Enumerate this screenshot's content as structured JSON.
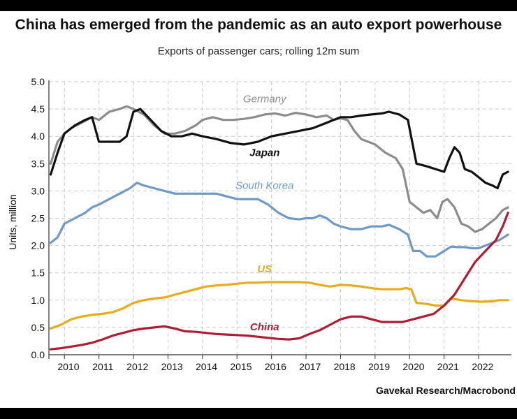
{
  "header": {
    "title": "China has emerged from the pandemic as an auto export powerhouse",
    "subtitle": "Exports of passenger cars; rolling 12m sum",
    "source": "Gavekal Research/Macrobond"
  },
  "chart_data": {
    "type": "line",
    "title": "China has emerged from the pandemic as an auto export powerhouse",
    "subtitle": "Exports of passenger cars; rolling 12m sum",
    "xlabel": "",
    "ylabel": "Units, million",
    "xlim": [
      2009.55,
      2022.95
    ],
    "ylim": [
      0,
      5
    ],
    "yticks": [
      "0.0",
      "0.5",
      "1.0",
      "1.5",
      "2.0",
      "2.5",
      "3.0",
      "3.5",
      "4.0",
      "4.5",
      "5.0"
    ],
    "xticks": [
      "2010",
      "2011",
      "2012",
      "2013",
      "2014",
      "2015",
      "2016",
      "2017",
      "2018",
      "2019",
      "2020",
      "2021",
      "2022"
    ],
    "grid": true,
    "series": [
      {
        "name": "Germany",
        "color": "#8c8c8c",
        "x": [
          2009.6,
          2009.8,
          2010.0,
          2010.2,
          2010.5,
          2010.8,
          2011.0,
          2011.3,
          2011.6,
          2011.8,
          2012.0,
          2012.3,
          2012.6,
          2012.9,
          2013.2,
          2013.5,
          2013.8,
          2014.0,
          2014.3,
          2014.6,
          2014.9,
          2015.2,
          2015.5,
          2015.8,
          2016.1,
          2016.4,
          2016.7,
          2017.0,
          2017.3,
          2017.6,
          2017.8,
          2018.0,
          2018.2,
          2018.4,
          2018.6,
          2018.8,
          2019.0,
          2019.3,
          2019.6,
          2019.8,
          2020.0,
          2020.2,
          2020.4,
          2020.6,
          2020.8,
          2020.95,
          2021.1,
          2021.3,
          2021.5,
          2021.7,
          2021.9,
          2022.1,
          2022.3,
          2022.5,
          2022.7,
          2022.85
        ],
        "values": [
          3.5,
          3.9,
          4.05,
          4.15,
          4.25,
          4.35,
          4.3,
          4.45,
          4.5,
          4.55,
          4.5,
          4.4,
          4.2,
          4.05,
          4.05,
          4.1,
          4.2,
          4.3,
          4.35,
          4.3,
          4.3,
          4.32,
          4.35,
          4.4,
          4.42,
          4.38,
          4.43,
          4.4,
          4.35,
          4.38,
          4.3,
          4.33,
          4.3,
          4.1,
          3.95,
          3.9,
          3.85,
          3.7,
          3.6,
          3.4,
          2.8,
          2.7,
          2.6,
          2.65,
          2.5,
          2.8,
          2.85,
          2.7,
          2.4,
          2.35,
          2.25,
          2.3,
          2.4,
          2.5,
          2.65,
          2.7
        ]
      },
      {
        "name": "Japan",
        "color": "#111111",
        "x": [
          2009.6,
          2009.8,
          2010.0,
          2010.3,
          2010.6,
          2010.8,
          2011.0,
          2011.3,
          2011.6,
          2011.8,
          2012.0,
          2012.2,
          2012.5,
          2012.8,
          2013.1,
          2013.4,
          2013.7,
          2014.0,
          2014.4,
          2014.8,
          2015.2,
          2015.6,
          2016.0,
          2016.4,
          2016.8,
          2017.2,
          2017.6,
          2017.8,
          2018.0,
          2018.3,
          2018.6,
          2018.9,
          2019.2,
          2019.4,
          2019.7,
          2019.95,
          2020.2,
          2020.5,
          2020.75,
          2021.0,
          2021.15,
          2021.3,
          2021.45,
          2021.6,
          2021.8,
          2022.0,
          2022.2,
          2022.4,
          2022.55,
          2022.7,
          2022.85
        ],
        "values": [
          3.3,
          3.7,
          4.05,
          4.2,
          4.3,
          4.35,
          3.9,
          3.9,
          3.9,
          4.0,
          4.45,
          4.5,
          4.3,
          4.1,
          4.0,
          4.0,
          4.05,
          4.0,
          3.95,
          3.88,
          3.85,
          3.9,
          4.0,
          4.05,
          4.1,
          4.15,
          4.25,
          4.3,
          4.35,
          4.35,
          4.38,
          4.4,
          4.42,
          4.45,
          4.4,
          4.3,
          3.5,
          3.45,
          3.4,
          3.35,
          3.6,
          3.8,
          3.7,
          3.4,
          3.35,
          3.25,
          3.15,
          3.1,
          3.05,
          3.3,
          3.35
        ]
      },
      {
        "name": "South Korea",
        "color": "#6f9ac8",
        "x": [
          2009.6,
          2009.8,
          2010.0,
          2010.3,
          2010.6,
          2010.8,
          2011.0,
          2011.3,
          2011.6,
          2011.9,
          2012.1,
          2012.3,
          2012.6,
          2012.9,
          2013.2,
          2013.5,
          2013.8,
          2014.1,
          2014.4,
          2014.7,
          2015.0,
          2015.3,
          2015.6,
          2015.9,
          2016.2,
          2016.5,
          2016.8,
          2017.0,
          2017.2,
          2017.4,
          2017.6,
          2017.8,
          2018.0,
          2018.3,
          2018.6,
          2018.9,
          2019.2,
          2019.4,
          2019.7,
          2019.95,
          2020.1,
          2020.3,
          2020.5,
          2020.75,
          2021.0,
          2021.2,
          2021.4,
          2021.6,
          2021.8,
          2022.0,
          2022.2,
          2022.4,
          2022.6,
          2022.85
        ],
        "values": [
          2.05,
          2.15,
          2.4,
          2.5,
          2.6,
          2.7,
          2.75,
          2.85,
          2.95,
          3.05,
          3.15,
          3.1,
          3.05,
          3.0,
          2.95,
          2.95,
          2.95,
          2.95,
          2.95,
          2.9,
          2.85,
          2.85,
          2.85,
          2.75,
          2.6,
          2.5,
          2.48,
          2.5,
          2.5,
          2.55,
          2.5,
          2.4,
          2.35,
          2.3,
          2.3,
          2.35,
          2.35,
          2.38,
          2.3,
          2.2,
          1.9,
          1.9,
          1.8,
          1.8,
          1.9,
          1.98,
          1.97,
          1.97,
          1.95,
          1.95,
          2.0,
          2.05,
          2.1,
          2.2
        ]
      },
      {
        "name": "US",
        "color": "#e6ac1a",
        "x": [
          2009.6,
          2009.9,
          2010.2,
          2010.5,
          2010.8,
          2011.1,
          2011.4,
          2011.7,
          2012.0,
          2012.3,
          2012.6,
          2012.9,
          2013.2,
          2013.5,
          2013.8,
          2014.1,
          2014.4,
          2014.7,
          2015.0,
          2015.3,
          2015.6,
          2015.9,
          2016.2,
          2016.5,
          2016.8,
          2017.1,
          2017.4,
          2017.7,
          2018.0,
          2018.3,
          2018.6,
          2018.9,
          2019.2,
          2019.5,
          2019.7,
          2019.9,
          2020.05,
          2020.2,
          2020.5,
          2020.75,
          2021.0,
          2021.2,
          2021.5,
          2021.8,
          2022.1,
          2022.4,
          2022.6,
          2022.85
        ],
        "values": [
          0.48,
          0.55,
          0.65,
          0.7,
          0.73,
          0.75,
          0.78,
          0.85,
          0.95,
          1.0,
          1.03,
          1.05,
          1.1,
          1.15,
          1.2,
          1.25,
          1.27,
          1.28,
          1.3,
          1.32,
          1.32,
          1.33,
          1.33,
          1.33,
          1.33,
          1.32,
          1.28,
          1.25,
          1.28,
          1.27,
          1.25,
          1.22,
          1.2,
          1.2,
          1.2,
          1.22,
          1.2,
          0.95,
          0.93,
          0.9,
          0.9,
          1.03,
          1.0,
          0.98,
          0.97,
          0.98,
          1.0,
          1.0
        ]
      },
      {
        "name": "China",
        "color": "#b01c34",
        "x": [
          2009.6,
          2009.9,
          2010.2,
          2010.5,
          2010.8,
          2011.1,
          2011.4,
          2011.7,
          2012.0,
          2012.3,
          2012.6,
          2012.9,
          2013.2,
          2013.5,
          2013.8,
          2014.1,
          2014.4,
          2014.7,
          2015.0,
          2015.3,
          2015.6,
          2015.9,
          2016.2,
          2016.5,
          2016.8,
          2017.1,
          2017.4,
          2017.7,
          2018.0,
          2018.3,
          2018.6,
          2018.9,
          2019.2,
          2019.5,
          2019.8,
          2020.1,
          2020.4,
          2020.7,
          2021.0,
          2021.3,
          2021.6,
          2021.9,
          2022.2,
          2022.5,
          2022.7,
          2022.85
        ],
        "values": [
          0.1,
          0.12,
          0.15,
          0.18,
          0.22,
          0.28,
          0.35,
          0.4,
          0.45,
          0.48,
          0.5,
          0.52,
          0.48,
          0.43,
          0.42,
          0.4,
          0.38,
          0.37,
          0.36,
          0.35,
          0.33,
          0.31,
          0.29,
          0.28,
          0.3,
          0.38,
          0.45,
          0.55,
          0.65,
          0.7,
          0.7,
          0.65,
          0.6,
          0.6,
          0.6,
          0.65,
          0.7,
          0.75,
          0.9,
          1.1,
          1.4,
          1.7,
          1.9,
          2.1,
          2.35,
          2.6
        ]
      }
    ],
    "labels": [
      {
        "text": "Germany",
        "series": "Germany",
        "at": [
          2015.8,
          4.62
        ]
      },
      {
        "text": "Japan",
        "series": "Japan",
        "at": [
          2015.8,
          3.64
        ]
      },
      {
        "text": "South Korea",
        "series": "South Korea",
        "at": [
          2015.8,
          3.04
        ]
      },
      {
        "text": "US",
        "series": "US",
        "at": [
          2015.8,
          1.51
        ]
      },
      {
        "text": "China",
        "series": "China",
        "at": [
          2015.8,
          0.45
        ]
      }
    ]
  }
}
